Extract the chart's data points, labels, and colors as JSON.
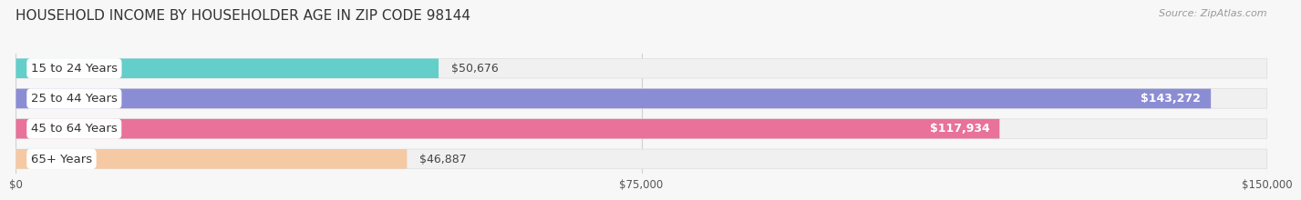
{
  "title": "HOUSEHOLD INCOME BY HOUSEHOLDER AGE IN ZIP CODE 98144",
  "source": "Source: ZipAtlas.com",
  "categories": [
    "15 to 24 Years",
    "25 to 44 Years",
    "45 to 64 Years",
    "65+ Years"
  ],
  "values": [
    50676,
    143272,
    117934,
    46887
  ],
  "bar_colors": [
    "#63ceca",
    "#8b8dd4",
    "#e8729a",
    "#f5c9a3"
  ],
  "bar_bg_color": "#efefef",
  "xmax": 150000,
  "xtick_labels": [
    "$0",
    "$75,000",
    "$150,000"
  ],
  "xtick_vals": [
    0,
    75000,
    150000
  ],
  "value_labels": [
    "$50,676",
    "$143,272",
    "$117,934",
    "$46,887"
  ],
  "value_inside": [
    false,
    true,
    true,
    false
  ],
  "title_fontsize": 11,
  "source_fontsize": 8,
  "bar_label_fontsize": 9.5,
  "value_label_fontsize": 9,
  "tick_fontsize": 8.5,
  "fig_bg": "#f7f7f7",
  "bar_height": 0.65,
  "bar_gap": 0.12
}
